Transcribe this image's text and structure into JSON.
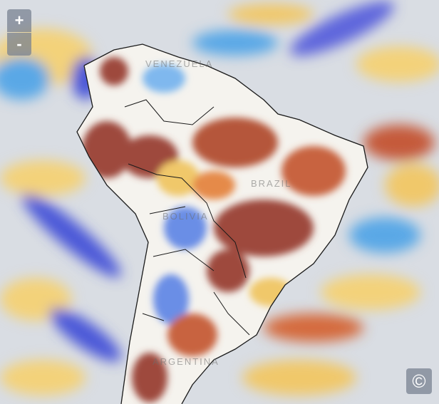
{
  "controls": {
    "zoom_in": "+",
    "zoom_out": "-",
    "attribution": "©"
  },
  "labels": [
    "VENEZUELA",
    "BRAZIL",
    "BOLIVIA",
    "ARGENTINA"
  ]
}
